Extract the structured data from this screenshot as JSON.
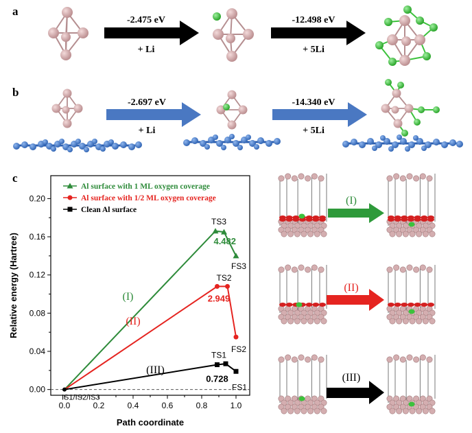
{
  "panel_labels": {
    "a": "a",
    "b": "b",
    "c": "c"
  },
  "panel_a": {
    "step1": {
      "energy": "-2.475 eV",
      "reagent": "+ Li"
    },
    "step2": {
      "energy": "-12.498 eV",
      "reagent": "+ 5Li"
    }
  },
  "panel_b": {
    "step1": {
      "energy": "-2.697 eV",
      "reagent": "+ Li"
    },
    "step2": {
      "energy": "-14.340 eV",
      "reagent": "+ 5Li"
    }
  },
  "panel_c_arrows": {
    "I": "(I)",
    "II": "(II)",
    "III": "(III)"
  },
  "colors": {
    "green": "#2e8b3a",
    "red": "#e52420",
    "black": "#000000",
    "blue_arrow": "#4a78c2",
    "cluster_atom": "#d8aeb0",
    "li_atom": "#3cc23c",
    "graphene_atom": "#3a78cc",
    "oxygen": "#d42020"
  },
  "chart_data": {
    "type": "line",
    "xlabel": "Path coordinate",
    "ylabel": "Relative energy (Hartree)",
    "xlim": [
      -0.08,
      1.08
    ],
    "ylim": [
      -0.006,
      0.224
    ],
    "xticks": [
      "0.0",
      "0.2",
      "0.4",
      "0.6",
      "0.8",
      "1.0"
    ],
    "yticks": [
      "0.00",
      "0.04",
      "0.08",
      "0.12",
      "0.16",
      "0.20"
    ],
    "zero_line": "dashed",
    "legend_placement": "top-right",
    "series": [
      {
        "name": "Al surface with 1 ML oxygen coverage",
        "color": "#2e8b3a",
        "marker": "triangle",
        "x": [
          0.0,
          0.88,
          0.93,
          1.0
        ],
        "y": [
          0.0,
          0.166,
          0.165,
          0.14
        ],
        "label": "(I)",
        "barrier": "4.482",
        "ts": "TS3",
        "fs": "FS3"
      },
      {
        "name": "Al surface with 1/2 ML oxygen coverage",
        "color": "#e52420",
        "marker": "circle",
        "x": [
          0.0,
          0.89,
          0.95,
          1.0
        ],
        "y": [
          0.0,
          0.108,
          0.108,
          0.055
        ],
        "label": "(II)",
        "barrier": "2.949",
        "ts": "TS2",
        "fs": "FS2"
      },
      {
        "name": "Clean Al surface",
        "color": "#000000",
        "marker": "square",
        "x": [
          0.0,
          0.89,
          0.94,
          1.0
        ],
        "y": [
          0.0,
          0.026,
          0.027,
          0.019
        ],
        "label": "(III)",
        "barrier": "0.728",
        "ts": "TS1",
        "fs": "FS1"
      }
    ],
    "start_label": "IS1/IS2/IS3"
  }
}
